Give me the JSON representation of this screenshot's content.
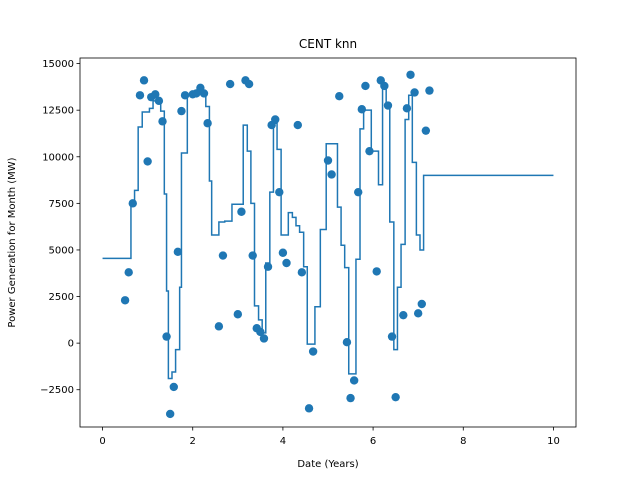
{
  "chart_data": {
    "type": "scatter",
    "title": "CENT knn",
    "xlabel": "Date (Years)",
    "ylabel": "Power Generation for Month (MW)",
    "xlim": [
      -0.5,
      10.5
    ],
    "ylim": [
      -4500,
      15300
    ],
    "xticks": [
      0,
      2,
      4,
      6,
      8,
      10
    ],
    "xtick_labels": [
      "0",
      "2",
      "4",
      "6",
      "8",
      "10"
    ],
    "yticks": [
      -2500,
      0,
      2500,
      5000,
      7500,
      10000,
      12500,
      15000
    ],
    "ytick_labels": [
      "−2500",
      "0",
      "2500",
      "5000",
      "7500",
      "10000",
      "12500",
      "15000"
    ],
    "grid": false,
    "colors": {
      "series": "#1f77b4",
      "axes": "#000000",
      "background": "#ffffff"
    },
    "series": [
      {
        "kind": "scatter",
        "points": [
          [
            0.5,
            2300
          ],
          [
            0.58,
            3800
          ],
          [
            0.67,
            7500
          ],
          [
            0.83,
            13300
          ],
          [
            0.92,
            14100
          ],
          [
            1.0,
            9750
          ],
          [
            1.08,
            13200
          ],
          [
            1.17,
            13350
          ],
          [
            1.25,
            13000
          ],
          [
            1.33,
            11900
          ],
          [
            1.42,
            350
          ],
          [
            1.5,
            -3800
          ],
          [
            1.58,
            -2350
          ],
          [
            1.67,
            4900
          ],
          [
            1.75,
            12450
          ],
          [
            1.83,
            13300
          ],
          [
            2.0,
            13350
          ],
          [
            2.08,
            13400
          ],
          [
            2.17,
            13700
          ],
          [
            2.25,
            13400
          ],
          [
            2.33,
            11800
          ],
          [
            2.58,
            900
          ],
          [
            2.67,
            4700
          ],
          [
            2.83,
            13900
          ],
          [
            3.0,
            1550
          ],
          [
            3.08,
            7050
          ],
          [
            3.17,
            14100
          ],
          [
            3.25,
            13900
          ],
          [
            3.33,
            4700
          ],
          [
            3.42,
            800
          ],
          [
            3.5,
            600
          ],
          [
            3.58,
            250
          ],
          [
            3.67,
            4100
          ],
          [
            3.75,
            11700
          ],
          [
            3.83,
            12000
          ],
          [
            3.92,
            8100
          ],
          [
            4.0,
            4850
          ],
          [
            4.08,
            4300
          ],
          [
            4.33,
            11700
          ],
          [
            4.42,
            3800
          ],
          [
            4.58,
            -3500
          ],
          [
            4.67,
            -450
          ],
          [
            5.0,
            9800
          ],
          [
            5.08,
            9050
          ],
          [
            5.25,
            13250
          ],
          [
            5.42,
            50
          ],
          [
            5.5,
            -2950
          ],
          [
            5.58,
            -2000
          ],
          [
            5.67,
            8100
          ],
          [
            5.75,
            12550
          ],
          [
            5.83,
            13800
          ],
          [
            5.92,
            10300
          ],
          [
            6.08,
            3850
          ],
          [
            6.17,
            14100
          ],
          [
            6.25,
            13800
          ],
          [
            6.33,
            12750
          ],
          [
            6.42,
            350
          ],
          [
            6.5,
            -2900
          ],
          [
            6.67,
            1500
          ],
          [
            6.75,
            12600
          ],
          [
            6.83,
            14400
          ],
          [
            6.92,
            13450
          ],
          [
            7.0,
            1600
          ],
          [
            7.08,
            2100
          ],
          [
            7.17,
            11400
          ],
          [
            7.25,
            13550
          ]
        ]
      },
      {
        "kind": "step",
        "points": [
          [
            0,
            4550
          ],
          [
            0.63,
            4550
          ],
          [
            0.63,
            7500
          ],
          [
            0.71,
            7500
          ],
          [
            0.71,
            8200
          ],
          [
            0.79,
            8200
          ],
          [
            0.79,
            11600
          ],
          [
            0.88,
            11600
          ],
          [
            0.88,
            12400
          ],
          [
            1.04,
            12400
          ],
          [
            1.04,
            12600
          ],
          [
            1.12,
            12600
          ],
          [
            1.12,
            13000
          ],
          [
            1.21,
            13000
          ],
          [
            1.21,
            12900
          ],
          [
            1.29,
            12900
          ],
          [
            1.29,
            12450
          ],
          [
            1.37,
            12450
          ],
          [
            1.37,
            8000
          ],
          [
            1.42,
            8000
          ],
          [
            1.42,
            2800
          ],
          [
            1.46,
            2800
          ],
          [
            1.46,
            -1900
          ],
          [
            1.54,
            -1900
          ],
          [
            1.54,
            -1550
          ],
          [
            1.62,
            -1550
          ],
          [
            1.62,
            -350
          ],
          [
            1.71,
            -350
          ],
          [
            1.71,
            3000
          ],
          [
            1.75,
            3000
          ],
          [
            1.75,
            10200
          ],
          [
            1.88,
            10200
          ],
          [
            1.88,
            13300
          ],
          [
            2.04,
            13300
          ],
          [
            2.04,
            13400
          ],
          [
            2.29,
            13400
          ],
          [
            2.29,
            12700
          ],
          [
            2.37,
            12700
          ],
          [
            2.37,
            8700
          ],
          [
            2.42,
            8700
          ],
          [
            2.42,
            5800
          ],
          [
            2.58,
            5800
          ],
          [
            2.58,
            6500
          ],
          [
            2.71,
            6500
          ],
          [
            2.71,
            6550
          ],
          [
            2.87,
            6550
          ],
          [
            2.87,
            7450
          ],
          [
            3.12,
            7450
          ],
          [
            3.12,
            11700
          ],
          [
            3.21,
            11700
          ],
          [
            3.21,
            10300
          ],
          [
            3.29,
            10300
          ],
          [
            3.29,
            7500
          ],
          [
            3.37,
            7500
          ],
          [
            3.37,
            2000
          ],
          [
            3.46,
            2000
          ],
          [
            3.46,
            1250
          ],
          [
            3.54,
            1250
          ],
          [
            3.54,
            550
          ],
          [
            3.62,
            550
          ],
          [
            3.62,
            4300
          ],
          [
            3.71,
            4300
          ],
          [
            3.71,
            8100
          ],
          [
            3.79,
            8100
          ],
          [
            3.79,
            11800
          ],
          [
            3.87,
            11800
          ],
          [
            3.87,
            10400
          ],
          [
            3.96,
            10400
          ],
          [
            3.96,
            5800
          ],
          [
            4.12,
            5800
          ],
          [
            4.12,
            7000
          ],
          [
            4.21,
            7000
          ],
          [
            4.21,
            6750
          ],
          [
            4.29,
            6750
          ],
          [
            4.29,
            6300
          ],
          [
            4.37,
            6300
          ],
          [
            4.37,
            5950
          ],
          [
            4.46,
            5950
          ],
          [
            4.46,
            4100
          ],
          [
            4.54,
            4100
          ],
          [
            4.54,
            -50
          ],
          [
            4.71,
            -50
          ],
          [
            4.71,
            1950
          ],
          [
            4.83,
            1950
          ],
          [
            4.83,
            6100
          ],
          [
            4.96,
            6100
          ],
          [
            4.96,
            10700
          ],
          [
            5.21,
            10700
          ],
          [
            5.21,
            7300
          ],
          [
            5.29,
            7300
          ],
          [
            5.29,
            5250
          ],
          [
            5.37,
            5250
          ],
          [
            5.37,
            4050
          ],
          [
            5.46,
            4050
          ],
          [
            5.46,
            -1650
          ],
          [
            5.62,
            -1650
          ],
          [
            5.62,
            4500
          ],
          [
            5.71,
            4500
          ],
          [
            5.71,
            11500
          ],
          [
            5.79,
            11500
          ],
          [
            5.79,
            12500
          ],
          [
            5.96,
            12500
          ],
          [
            5.96,
            10300
          ],
          [
            6.12,
            10300
          ],
          [
            6.12,
            8500
          ],
          [
            6.21,
            8500
          ],
          [
            6.21,
            13900
          ],
          [
            6.29,
            13900
          ],
          [
            6.29,
            12900
          ],
          [
            6.37,
            12900
          ],
          [
            6.37,
            6500
          ],
          [
            6.46,
            6500
          ],
          [
            6.46,
            -350
          ],
          [
            6.54,
            -350
          ],
          [
            6.54,
            3000
          ],
          [
            6.62,
            3000
          ],
          [
            6.62,
            5300
          ],
          [
            6.71,
            5300
          ],
          [
            6.71,
            12000
          ],
          [
            6.79,
            12000
          ],
          [
            6.79,
            13300
          ],
          [
            6.87,
            13300
          ],
          [
            6.87,
            9700
          ],
          [
            6.96,
            9700
          ],
          [
            6.96,
            5800
          ],
          [
            7.04,
            5800
          ],
          [
            7.04,
            5000
          ],
          [
            7.12,
            5000
          ],
          [
            7.12,
            9000
          ],
          [
            10,
            9000
          ]
        ]
      }
    ]
  }
}
